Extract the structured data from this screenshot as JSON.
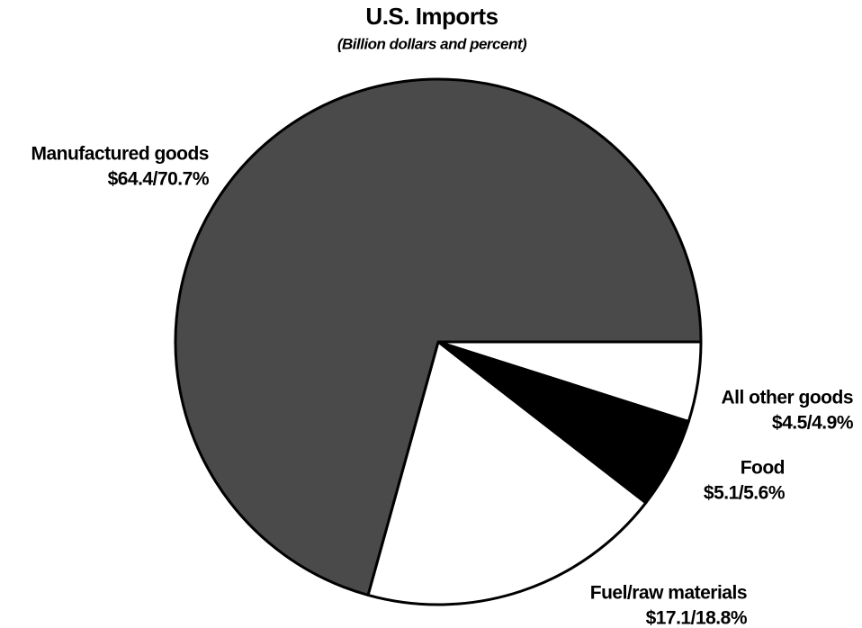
{
  "chart_data": {
    "type": "pie",
    "title": "U.S. Imports",
    "subtitle": "(Billion dollars and percent)",
    "categories": [
      "All other goods",
      "Food",
      "Fuel/raw materials",
      "Manufactured goods"
    ],
    "values": [
      4.9,
      5.6,
      18.8,
      70.7
    ],
    "value_labels": [
      "$4.5/4.9%",
      "$5.1/5.6%",
      "$17.1/18.8%",
      "$64.4/70.7%"
    ],
    "colors": [
      "#ffffff",
      "#000000",
      "#ffffff",
      "#4a4a4a"
    ]
  }
}
